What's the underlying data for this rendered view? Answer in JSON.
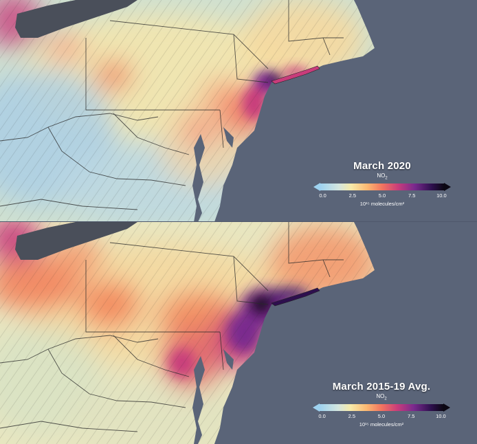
{
  "panels": [
    {
      "title": "March 2020",
      "variable_main": "NO",
      "variable_sub": "2",
      "units": "10¹⁵ molecules/cm²",
      "ticks": [
        "0.0",
        "2.5",
        "5.0",
        "7.5",
        "10.0"
      ]
    },
    {
      "title": "March 2015-19 Avg.",
      "variable_main": "NO",
      "variable_sub": "2",
      "units": "10¹⁵ molecules/cm²",
      "ticks": [
        "0.0",
        "2.5",
        "5.0",
        "7.5",
        "10.0"
      ]
    }
  ],
  "colors": {
    "ocean": "#5a6478",
    "lake": "#4a4f5a",
    "low": "#9ed2f0",
    "mid": "#f7eaa9",
    "high": "#f2745f",
    "very_high": "#7a2a8e",
    "max": "#0b0713"
  }
}
